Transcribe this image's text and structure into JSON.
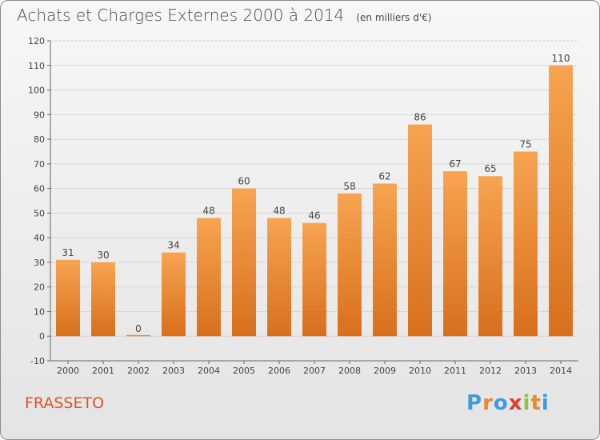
{
  "header": {
    "title": "Achats et Charges Externes 2000 à 2014",
    "unit": "(en milliers d'€)"
  },
  "footer": {
    "commune": "FRASSETO",
    "logo_text": "Proxiti",
    "logo_colors": [
      "#3d9be0",
      "#e8892a",
      "#3d9be0",
      "#e03a3a",
      "#8cc63f",
      "#e8892a",
      "#3d9be0"
    ]
  },
  "colors": {
    "bar_top": "#f7a450",
    "bar_bottom": "#d86f1c",
    "label": "#444444",
    "grid": "#c8c8c8",
    "commune": "#e0522a"
  },
  "chart_data": {
    "type": "bar",
    "categories": [
      "2000",
      "2001",
      "2002",
      "2003",
      "2004",
      "2005",
      "2006",
      "2007",
      "2008",
      "2009",
      "2010",
      "2011",
      "2012",
      "2013",
      "2014"
    ],
    "values": [
      31,
      30,
      0,
      34,
      48,
      60,
      48,
      46,
      58,
      62,
      86,
      67,
      65,
      75,
      110
    ],
    "title": "Achats et Charges Externes 2000 à 2014",
    "ylim": [
      -10,
      120
    ],
    "yticks": [
      -10,
      0,
      10,
      20,
      30,
      40,
      50,
      60,
      70,
      80,
      90,
      100,
      110,
      120
    ],
    "grid": true,
    "data_labels": true
  }
}
